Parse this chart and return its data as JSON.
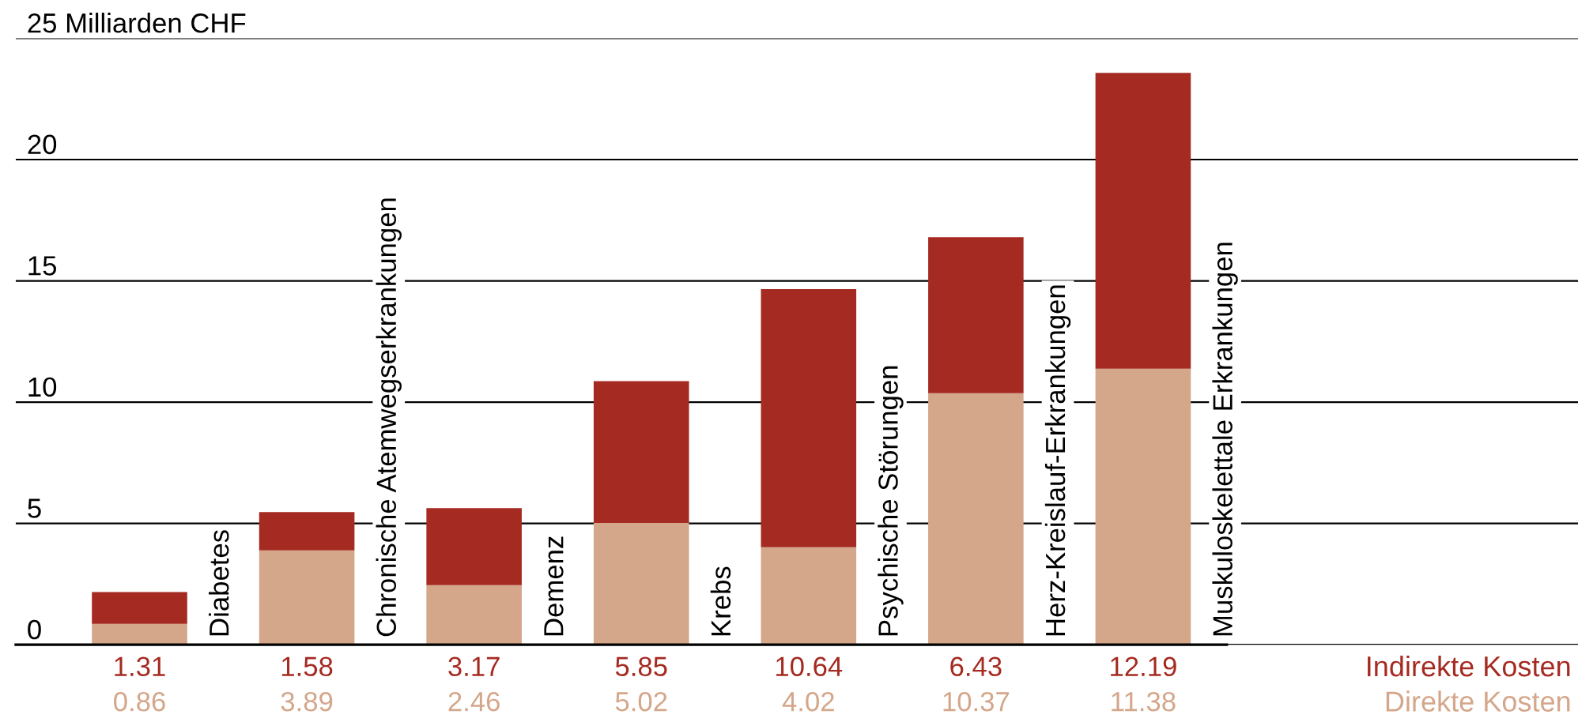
{
  "chart_data": {
    "type": "bar",
    "stacked": true,
    "categories": [
      "Diabetes",
      "Chronische Atemwegserkrankungen",
      "Demenz",
      "Krebs",
      "Psychische Störungen",
      "Herz-Kreislauf-Erkrankungen",
      "Muskuloskelettale Erkrankungen"
    ],
    "series": [
      {
        "name": "Direkte Kosten",
        "color": "#d4a68a",
        "values": [
          0.86,
          3.89,
          2.46,
          5.02,
          4.02,
          10.37,
          11.38
        ]
      },
      {
        "name": "Indirekte Kosten",
        "color": "#a52a21",
        "values": [
          1.31,
          1.58,
          3.17,
          5.85,
          10.64,
          6.43,
          12.19
        ]
      }
    ],
    "ylim": [
      0,
      25
    ],
    "yticks": [
      0,
      5,
      10,
      15,
      20,
      {
        "value": 25,
        "label": "25 Milliarden CHF"
      }
    ],
    "grid": "y",
    "data_labels": true,
    "legend": "bottom right"
  }
}
